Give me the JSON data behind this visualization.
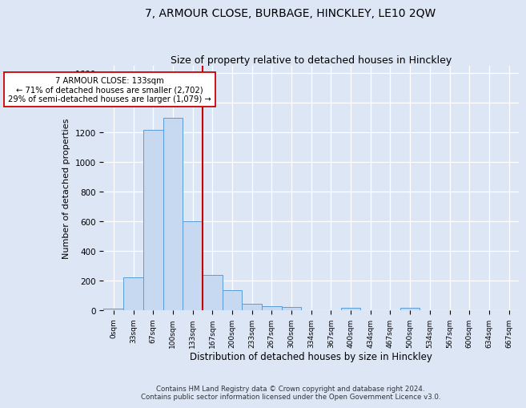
{
  "title": "7, ARMOUR CLOSE, BURBAGE, HINCKLEY, LE10 2QW",
  "subtitle": "Size of property relative to detached houses in Hinckley",
  "xlabel": "Distribution of detached houses by size in Hinckley",
  "ylabel": "Number of detached properties",
  "bin_labels": [
    "0sqm",
    "33sqm",
    "67sqm",
    "100sqm",
    "133sqm",
    "167sqm",
    "200sqm",
    "233sqm",
    "267sqm",
    "300sqm",
    "334sqm",
    "367sqm",
    "400sqm",
    "434sqm",
    "467sqm",
    "500sqm",
    "534sqm",
    "567sqm",
    "600sqm",
    "634sqm",
    "667sqm"
  ],
  "bar_heights": [
    10,
    220,
    1220,
    1300,
    600,
    235,
    135,
    45,
    25,
    20,
    0,
    0,
    15,
    0,
    0,
    15,
    0,
    0,
    0,
    0,
    0
  ],
  "bar_color": "#c6d9f1",
  "bar_edge_color": "#5b9bd5",
  "property_bin_index": 4,
  "property_line_color": "#cc0000",
  "annotation_line1": "7 ARMOUR CLOSE: 133sqm",
  "annotation_line2": "← 71% of detached houses are smaller (2,702)",
  "annotation_line3": "29% of semi-detached houses are larger (1,079) →",
  "annotation_box_color": "#ffffff",
  "annotation_box_edge_color": "#cc0000",
  "ylim": [
    0,
    1650
  ],
  "yticks": [
    0,
    200,
    400,
    600,
    800,
    1000,
    1200,
    1400,
    1600
  ],
  "background_color": "#dce6f5",
  "grid_color": "#ffffff",
  "footer_line1": "Contains HM Land Registry data © Crown copyright and database right 2024.",
  "footer_line2": "Contains public sector information licensed under the Open Government Licence v3.0.",
  "title_fontsize": 10,
  "subtitle_fontsize": 9,
  "xlabel_fontsize": 8.5,
  "ylabel_fontsize": 8
}
